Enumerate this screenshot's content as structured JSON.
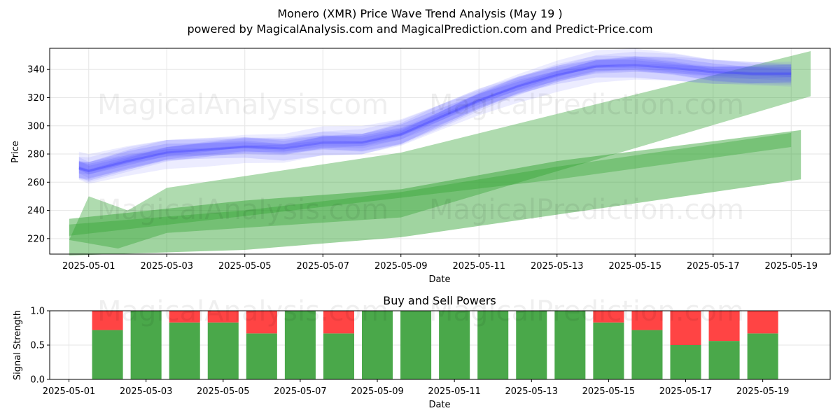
{
  "title": "Monero (XMR) Price Wave Trend Analysis (May 19 )",
  "subtitle": "powered by MagicalAnalysis.com and MagicalPrediction.com and Predict-Price.com",
  "watermarks": [
    "MagicalAnalysis.com",
    "MagicalPrediction.com"
  ],
  "chart_data": [
    {
      "type": "area",
      "xlabel": "Date",
      "ylabel": "Price",
      "x_range": [
        "2025-04-30",
        "2025-05-20"
      ],
      "ylim": [
        209,
        355
      ],
      "yticks": [
        220,
        240,
        260,
        280,
        300,
        320,
        340
      ],
      "xticks": [
        "2025-05-01",
        "2025-05-03",
        "2025-05-05",
        "2025-05-07",
        "2025-05-09",
        "2025-05-11",
        "2025-05-13",
        "2025-05-15",
        "2025-05-17",
        "2025-05-19"
      ],
      "grid": true,
      "colors": {
        "wave": "#4040ff",
        "trend_band": "#2ca02c"
      },
      "wave_center": [
        {
          "x": "2025-04-30T18:00",
          "y": 270
        },
        {
          "x": "2025-05-01",
          "y": 268
        },
        {
          "x": "2025-05-02",
          "y": 275
        },
        {
          "x": "2025-05-03",
          "y": 281
        },
        {
          "x": "2025-05-04",
          "y": 283
        },
        {
          "x": "2025-05-05",
          "y": 285
        },
        {
          "x": "2025-05-06",
          "y": 284
        },
        {
          "x": "2025-05-07",
          "y": 288
        },
        {
          "x": "2025-05-08",
          "y": 288
        },
        {
          "x": "2025-05-09",
          "y": 294
        },
        {
          "x": "2025-05-10",
          "y": 306
        },
        {
          "x": "2025-05-11",
          "y": 318
        },
        {
          "x": "2025-05-12",
          "y": 328
        },
        {
          "x": "2025-05-13",
          "y": 336
        },
        {
          "x": "2025-05-14",
          "y": 342
        },
        {
          "x": "2025-05-15",
          "y": 343
        },
        {
          "x": "2025-05-16",
          "y": 341
        },
        {
          "x": "2025-05-17",
          "y": 338
        },
        {
          "x": "2025-05-18",
          "y": 337
        },
        {
          "x": "2025-05-19",
          "y": 337
        }
      ],
      "trend_bands": [
        {
          "upper": [
            [
              "2025-04-30T12:00",
              219
            ],
            [
              "2025-05-01",
              250
            ],
            [
              "2025-05-02",
              240
            ],
            [
              "2025-05-03",
              256
            ],
            [
              "2025-05-09",
              281
            ],
            [
              "2025-05-19T12:00",
              353
            ]
          ],
          "lower": [
            [
              "2025-04-30T12:00",
              219
            ],
            [
              "2025-05-01T18:00",
              213
            ],
            [
              "2025-05-03",
              224
            ],
            [
              "2025-05-09",
              235
            ],
            [
              "2025-05-19T12:00",
              321
            ]
          ]
        },
        {
          "upper": [
            [
              "2025-04-30T12:00",
              234
            ],
            [
              "2025-05-05",
              247
            ],
            [
              "2025-05-09",
              255
            ],
            [
              "2025-05-13",
              275
            ],
            [
              "2025-05-19T06:00",
              297
            ]
          ],
          "lower": [
            [
              "2025-04-30T12:00",
              208
            ],
            [
              "2025-05-05",
              212
            ],
            [
              "2025-05-09",
              221
            ],
            [
              "2025-05-13",
              237
            ],
            [
              "2025-05-19T06:00",
              262
            ]
          ]
        },
        {
          "upper": [
            [
              "2025-04-30T12:00",
              230
            ],
            [
              "2025-05-05",
              240
            ],
            [
              "2025-05-09",
              253
            ],
            [
              "2025-05-13",
              271
            ],
            [
              "2025-05-19",
              295
            ]
          ],
          "lower": [
            [
              "2025-04-30T12:00",
              222
            ],
            [
              "2025-05-05",
              236
            ],
            [
              "2025-05-09",
              249
            ],
            [
              "2025-05-13",
              262
            ],
            [
              "2025-05-19",
              285
            ]
          ]
        }
      ]
    },
    {
      "type": "bar",
      "title": "Buy and Sell Powers",
      "xlabel": "Date",
      "ylabel": "Signal Strength",
      "ylim": [
        0,
        1
      ],
      "yticks": [
        "0.0",
        "0.5",
        "1.0"
      ],
      "xticks": [
        "2025-05-01",
        "2025-05-03",
        "2025-05-05",
        "2025-05-07",
        "2025-05-09",
        "2025-05-11",
        "2025-05-13",
        "2025-05-15",
        "2025-05-17",
        "2025-05-19"
      ],
      "x_range": [
        "2025-04-30T12:00",
        "2025-05-20T18:00"
      ],
      "grid": true,
      "colors": {
        "buy": "#4aa84a",
        "sell": "#ff4444"
      },
      "categories": [
        "2025-05-02",
        "2025-05-03",
        "2025-05-04",
        "2025-05-05",
        "2025-05-06",
        "2025-05-07",
        "2025-05-08",
        "2025-05-09",
        "2025-05-10",
        "2025-05-11",
        "2025-05-12",
        "2025-05-13",
        "2025-05-14",
        "2025-05-15",
        "2025-05-16",
        "2025-05-17",
        "2025-05-18",
        "2025-05-19"
      ],
      "series": [
        {
          "key": "buy",
          "values": [
            0.72,
            1.0,
            0.83,
            0.83,
            0.67,
            1.0,
            0.67,
            1.0,
            1.0,
            1.0,
            1.0,
            1.0,
            1.0,
            0.83,
            0.72,
            0.5,
            0.56,
            0.67
          ]
        },
        {
          "key": "sell",
          "values": [
            0.28,
            0.0,
            0.17,
            0.17,
            0.33,
            0.0,
            0.33,
            0.0,
            0.0,
            0.0,
            0.0,
            0.0,
            0.0,
            0.17,
            0.28,
            0.5,
            0.44,
            0.33
          ]
        }
      ]
    }
  ]
}
